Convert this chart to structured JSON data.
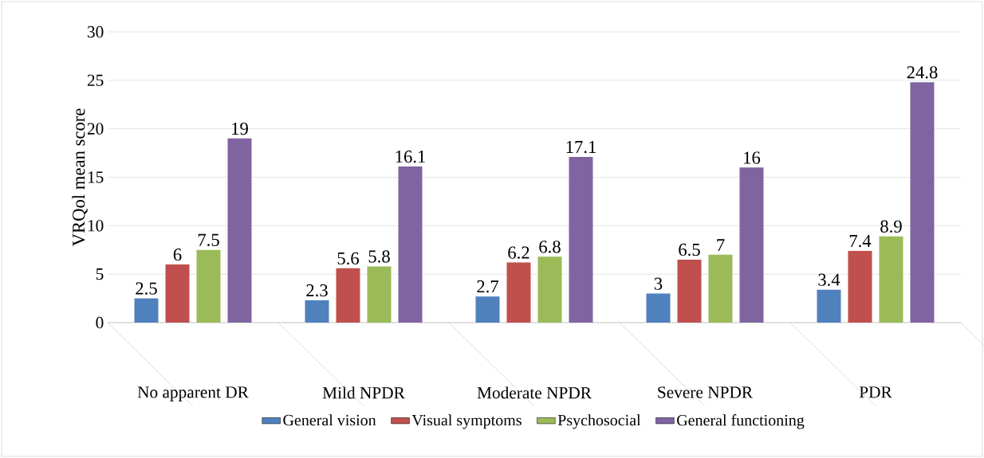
{
  "chart_data": {
    "type": "bar",
    "ylabel": "VRQol mean score",
    "categories": [
      "No apparent DR",
      "Mild NPDR",
      "Moderate NPDR",
      "Severe NPDR",
      "PDR"
    ],
    "series": [
      {
        "name": "General vision",
        "color": "#4f81bd",
        "values": [
          2.5,
          2.3,
          2.7,
          3,
          3.4
        ]
      },
      {
        "name": "Visual symptoms",
        "color": "#c0504d",
        "values": [
          6,
          5.6,
          6.2,
          6.5,
          7.4
        ]
      },
      {
        "name": "Psychosocial",
        "color": "#9bbb59",
        "values": [
          7.5,
          5.8,
          6.8,
          7,
          8.9
        ]
      },
      {
        "name": "General functioning",
        "color": "#8064a2",
        "values": [
          19,
          16.1,
          17.1,
          16,
          24.8
        ]
      }
    ],
    "ylim": [
      0,
      30
    ],
    "yticks": [
      0,
      5,
      10,
      15,
      20,
      25,
      30
    ],
    "grid": "y",
    "legend": "bottom",
    "data_labels": true
  }
}
